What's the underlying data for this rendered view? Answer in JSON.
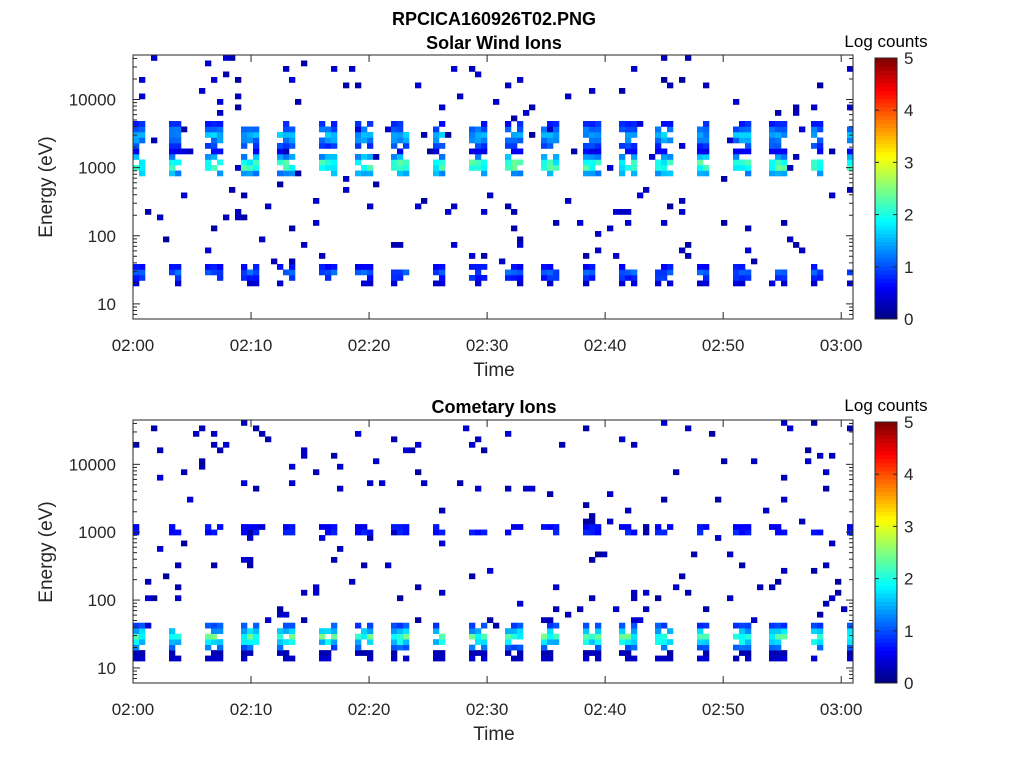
{
  "figure_title": "RPCICA160926T02.PNG",
  "panels": [
    {
      "title": "Solar Wind Ions",
      "xlabel": "Time",
      "ylabel": "Energy (eV)",
      "colorbar_label": "Log counts",
      "xticks": [
        "02:00",
        "02:10",
        "02:20",
        "02:30",
        "02:40",
        "02:50",
        "03:00"
      ],
      "yticks": [
        "10",
        "100",
        "1000",
        "10000"
      ],
      "cbticks": [
        "0",
        "1",
        "2",
        "3",
        "4",
        "5"
      ]
    },
    {
      "title": "Cometary Ions",
      "xlabel": "Time",
      "ylabel": "Energy (eV)",
      "colorbar_label": "Log counts",
      "xticks": [
        "02:00",
        "02:10",
        "02:20",
        "02:30",
        "02:40",
        "02:50",
        "03:00"
      ],
      "yticks": [
        "10",
        "100",
        "1000",
        "10000"
      ],
      "cbticks": [
        "0",
        "1",
        "2",
        "3",
        "4",
        "5"
      ]
    }
  ],
  "chart_data": [
    {
      "type": "heatmap",
      "title": "Solar Wind Ions",
      "xlabel": "Time",
      "ylabel": "Energy (eV)",
      "xlim": [
        "02:00",
        "03:01"
      ],
      "ylim": [
        6,
        45000
      ],
      "yscale": "log",
      "color_label": "Log counts",
      "clim": [
        0,
        5
      ],
      "colormap": "jet",
      "sweep_period_min": 3.2,
      "bands": [
        {
          "energy_eV": [
            700,
            1700
          ],
          "log_counts_peak": 2.8,
          "description": "solar wind proton peak"
        },
        {
          "energy_eV": [
            1700,
            5000
          ],
          "log_counts_peak": 1.8
        },
        {
          "energy_eV": [
            20,
            40
          ],
          "log_counts_peak": 1.3,
          "description": "low-energy band"
        },
        {
          "energy_eV": [
            40,
            45000
          ],
          "log_counts_peak": 0.3,
          "description": "sparse background"
        }
      ]
    },
    {
      "type": "heatmap",
      "title": "Cometary Ions",
      "xlabel": "Time",
      "ylabel": "Energy (eV)",
      "xlim": [
        "02:00",
        "03:01"
      ],
      "ylim": [
        6,
        45000
      ],
      "yscale": "log",
      "color_label": "Log counts",
      "clim": [
        0,
        5
      ],
      "colormap": "jet",
      "sweep_period_min": 3.2,
      "bands": [
        {
          "energy_eV": [
            18,
            45
          ],
          "log_counts_peak": 2.6,
          "description": "cometary ion peak"
        },
        {
          "energy_eV": [
            900,
            1300
          ],
          "log_counts_peak": 1.2
        },
        {
          "energy_eV": [
            12,
            18
          ],
          "log_counts_peak": 0.5
        },
        {
          "energy_eV": [
            40,
            45000
          ],
          "log_counts_peak": 0.3,
          "description": "sparse background"
        }
      ]
    }
  ]
}
